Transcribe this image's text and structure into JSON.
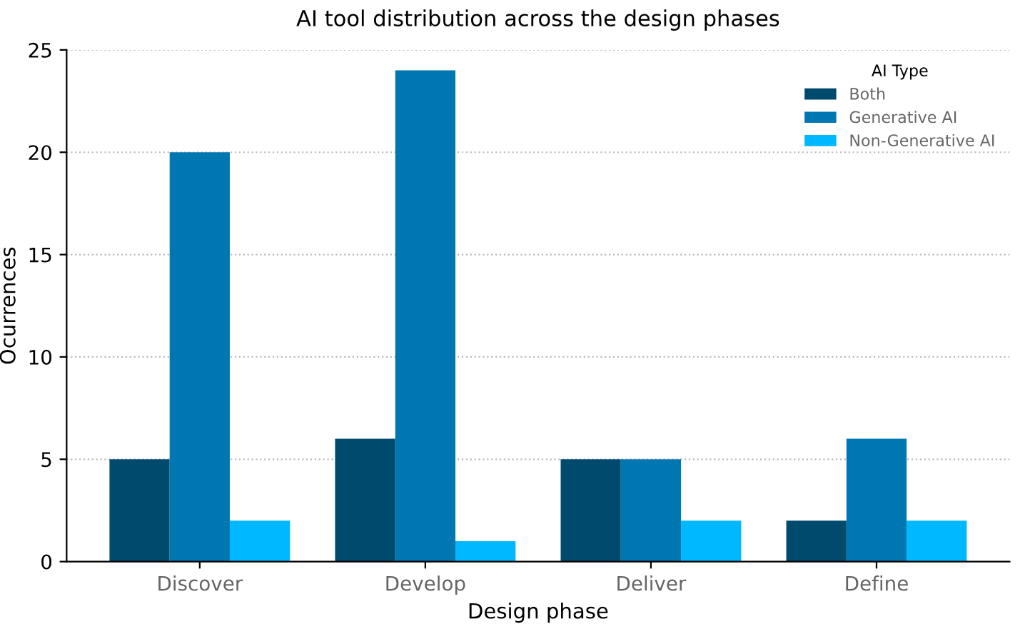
{
  "chart_data": {
    "type": "bar",
    "title": "AI tool distribution across the design phases",
    "xlabel": "Design phase",
    "ylabel": "Ocurrences",
    "legend_title": "AI Type",
    "categories": [
      "Discover",
      "Develop",
      "Deliver",
      "Define"
    ],
    "series": [
      {
        "name": "Both",
        "color": "#004a6e",
        "values": [
          5,
          6,
          5,
          2
        ]
      },
      {
        "name": "Generative AI",
        "color": "#0077b0",
        "values": [
          20,
          24,
          5,
          6
        ]
      },
      {
        "name": "Non-Generative AI",
        "color": "#00b8ff",
        "values": [
          2,
          1,
          2,
          2
        ]
      }
    ],
    "ylim": [
      0,
      25
    ],
    "yticks": [
      0,
      5,
      10,
      15,
      20,
      25
    ],
    "grid": "y",
    "legend": "top right"
  }
}
